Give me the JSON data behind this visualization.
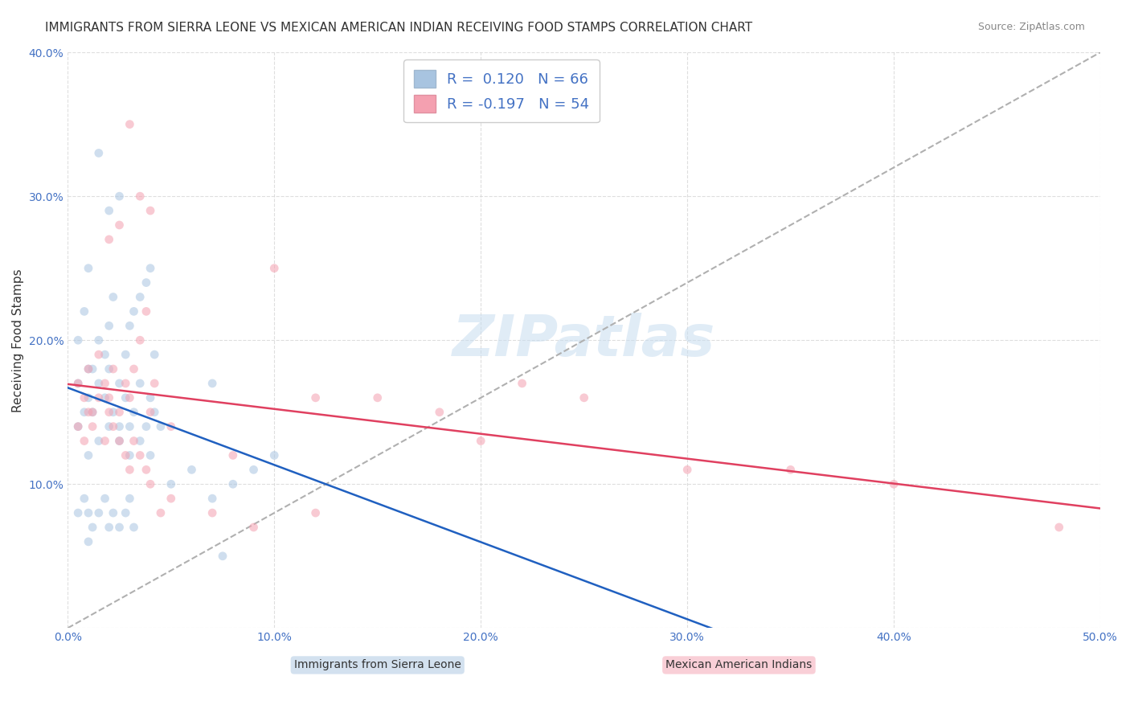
{
  "title": "IMMIGRANTS FROM SIERRA LEONE VS MEXICAN AMERICAN INDIAN RECEIVING FOOD STAMPS CORRELATION CHART",
  "source": "Source: ZipAtlas.com",
  "ylabel": "Receiving Food Stamps",
  "xlabel": "",
  "xlim": [
    0.0,
    0.5
  ],
  "ylim": [
    0.0,
    0.4
  ],
  "xticks": [
    0.0,
    0.1,
    0.2,
    0.3,
    0.4,
    0.5
  ],
  "yticks": [
    0.0,
    0.1,
    0.2,
    0.3,
    0.4
  ],
  "xticklabels": [
    "0.0%",
    "10.0%",
    "20.0%",
    "30.0%",
    "40.0%",
    "50.0%"
  ],
  "yticklabels": [
    "",
    "10.0%",
    "20.0%",
    "30.0%",
    "40.0%"
  ],
  "blue_color": "#a8c4e0",
  "pink_color": "#f4a0b0",
  "blue_line_color": "#2060c0",
  "pink_line_color": "#e04060",
  "legend_R1": "R =  0.120",
  "legend_N1": "N = 66",
  "legend_R2": "R = -0.197",
  "legend_N2": "N = 54",
  "label1": "Immigrants from Sierra Leone",
  "label2": "Mexican American Indians",
  "watermark": "ZIPatlas",
  "blue_scatter_x": [
    0.01,
    0.005,
    0.005,
    0.008,
    0.01,
    0.01,
    0.012,
    0.015,
    0.015,
    0.018,
    0.02,
    0.02,
    0.022,
    0.025,
    0.025,
    0.028,
    0.03,
    0.03,
    0.032,
    0.035,
    0.035,
    0.038,
    0.04,
    0.04,
    0.042,
    0.045,
    0.005,
    0.008,
    0.01,
    0.012,
    0.015,
    0.018,
    0.02,
    0.022,
    0.025,
    0.028,
    0.03,
    0.032,
    0.035,
    0.038,
    0.04,
    0.042,
    0.05,
    0.06,
    0.07,
    0.08,
    0.09,
    0.1,
    0.005,
    0.008,
    0.01,
    0.012,
    0.015,
    0.018,
    0.02,
    0.022,
    0.025,
    0.028,
    0.03,
    0.032,
    0.025,
    0.02,
    0.015,
    0.07,
    0.075,
    0.01
  ],
  "blue_scatter_y": [
    0.16,
    0.17,
    0.14,
    0.15,
    0.18,
    0.12,
    0.15,
    0.17,
    0.13,
    0.16,
    0.14,
    0.18,
    0.15,
    0.14,
    0.13,
    0.16,
    0.14,
    0.12,
    0.15,
    0.13,
    0.17,
    0.14,
    0.16,
    0.12,
    0.15,
    0.14,
    0.2,
    0.22,
    0.25,
    0.18,
    0.2,
    0.19,
    0.21,
    0.23,
    0.17,
    0.19,
    0.21,
    0.22,
    0.23,
    0.24,
    0.25,
    0.19,
    0.1,
    0.11,
    0.09,
    0.1,
    0.11,
    0.12,
    0.08,
    0.09,
    0.08,
    0.07,
    0.08,
    0.09,
    0.07,
    0.08,
    0.07,
    0.08,
    0.09,
    0.07,
    0.3,
    0.29,
    0.33,
    0.17,
    0.05,
    0.06
  ],
  "pink_scatter_x": [
    0.005,
    0.008,
    0.01,
    0.012,
    0.015,
    0.018,
    0.02,
    0.022,
    0.025,
    0.028,
    0.03,
    0.032,
    0.035,
    0.038,
    0.04,
    0.042,
    0.05,
    0.08,
    0.1,
    0.15,
    0.2,
    0.25,
    0.3,
    0.35,
    0.4,
    0.48,
    0.005,
    0.008,
    0.01,
    0.012,
    0.015,
    0.018,
    0.02,
    0.022,
    0.025,
    0.028,
    0.03,
    0.032,
    0.035,
    0.038,
    0.04,
    0.12,
    0.18,
    0.22,
    0.02,
    0.025,
    0.03,
    0.035,
    0.04,
    0.045,
    0.05,
    0.07,
    0.09,
    0.12
  ],
  "pink_scatter_y": [
    0.17,
    0.16,
    0.18,
    0.15,
    0.19,
    0.17,
    0.16,
    0.18,
    0.15,
    0.17,
    0.16,
    0.18,
    0.2,
    0.22,
    0.15,
    0.17,
    0.14,
    0.12,
    0.25,
    0.16,
    0.13,
    0.16,
    0.11,
    0.11,
    0.1,
    0.07,
    0.14,
    0.13,
    0.15,
    0.14,
    0.16,
    0.13,
    0.15,
    0.14,
    0.13,
    0.12,
    0.11,
    0.13,
    0.12,
    0.11,
    0.1,
    0.16,
    0.15,
    0.17,
    0.27,
    0.28,
    0.35,
    0.3,
    0.29,
    0.08,
    0.09,
    0.08,
    0.07,
    0.08
  ],
  "background_color": "#ffffff",
  "grid_color": "#d0d0d0",
  "title_fontsize": 11,
  "axis_label_fontsize": 11,
  "tick_fontsize": 10,
  "legend_fontsize": 13,
  "watermark_fontsize": 52,
  "scatter_size": 60,
  "scatter_alpha": 0.55
}
